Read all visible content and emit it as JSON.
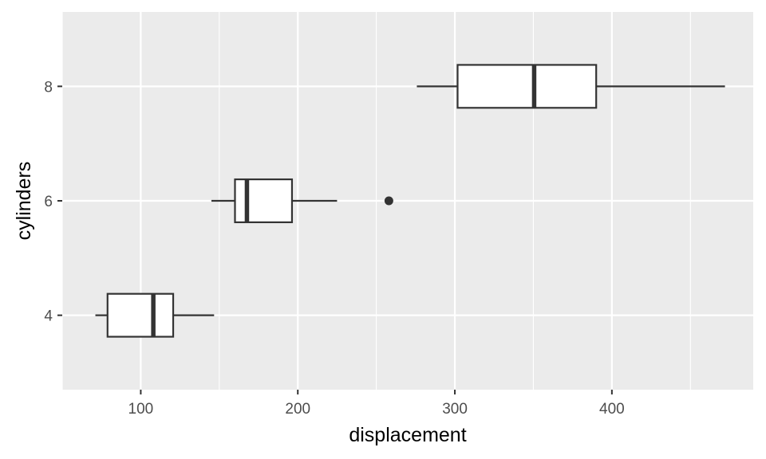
{
  "chart_data": {
    "type": "boxplot",
    "orientation": "horizontal",
    "xlabel": "displacement",
    "ylabel": "cylinders",
    "xlim": [
      50,
      490
    ],
    "ylim": [
      2.7,
      9.3
    ],
    "x_ticks": [
      100,
      200,
      300,
      400
    ],
    "x_minor_ticks": [
      50,
      150,
      250,
      350,
      450
    ],
    "y_ticks": [
      4,
      6,
      8
    ],
    "grid": true,
    "colors": {
      "panel": "#ebebeb",
      "grid": "#ffffff",
      "box_fill": "#ffffff",
      "box_stroke": "#333333"
    },
    "boxes": [
      {
        "category": 4,
        "whisker_low": 71.1,
        "q1": 78.85,
        "median": 108,
        "q3": 120.65,
        "whisker_high": 146.7,
        "outliers": []
      },
      {
        "category": 6,
        "whisker_low": 145,
        "q1": 160,
        "median": 167.6,
        "q3": 196.3,
        "whisker_high": 225,
        "outliers": [
          258
        ]
      },
      {
        "category": 8,
        "whisker_low": 275.8,
        "q1": 301.75,
        "median": 350.5,
        "q3": 390,
        "whisker_high": 472,
        "outliers": []
      }
    ]
  }
}
